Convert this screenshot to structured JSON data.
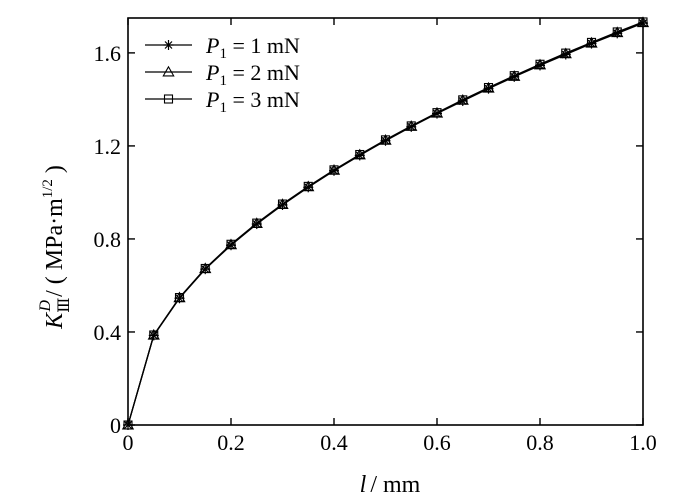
{
  "chart_data": {
    "type": "line",
    "title": "",
    "xlabel": {
      "var": "l",
      "unit": "/ mm"
    },
    "ylabel": {
      "var": "K",
      "sup": "D",
      "sub": "Ⅲ",
      "unit_prefix": "/ ( MPa·m",
      "unit_exp": "1/2",
      "unit_suffix": " )"
    },
    "xlim": [
      0,
      1.0
    ],
    "ylim": [
      0,
      1.75
    ],
    "xticks": [
      0,
      0.2,
      0.4,
      0.6,
      0.8,
      1.0
    ],
    "xtick_labels": [
      "0",
      "0.2",
      "0.4",
      "0.6",
      "0.8",
      "1.0"
    ],
    "yticks": [
      0,
      0.4,
      0.8,
      1.2,
      1.6
    ],
    "ytick_labels": [
      "0",
      "0.4",
      "0.8",
      "1.2",
      "1.6"
    ],
    "grid": false,
    "legend_position": "top-left",
    "x": [
      0,
      0.05,
      0.1,
      0.15,
      0.2,
      0.25,
      0.3,
      0.35,
      0.4,
      0.45,
      0.5,
      0.55,
      0.6,
      0.65,
      0.7,
      0.75,
      0.8,
      0.85,
      0.9,
      0.95,
      1.0
    ],
    "series": [
      {
        "name": {
          "var": "P",
          "sub": "1",
          "rest": " = 1 mN"
        },
        "marker": "star",
        "values": [
          0,
          0.385,
          0.545,
          0.67,
          0.773,
          0.864,
          0.946,
          1.022,
          1.093,
          1.159,
          1.222,
          1.282,
          1.339,
          1.393,
          1.446,
          1.497,
          1.546,
          1.593,
          1.64,
          1.684,
          1.728
        ]
      },
      {
        "name": {
          "var": "P",
          "sub": "1",
          "rest": " = 2 mN"
        },
        "marker": "triangle",
        "values": [
          0,
          0.386,
          0.547,
          0.672,
          0.775,
          0.866,
          0.948,
          1.024,
          1.095,
          1.161,
          1.224,
          1.284,
          1.341,
          1.396,
          1.448,
          1.499,
          1.548,
          1.596,
          1.642,
          1.687,
          1.73
        ]
      },
      {
        "name": {
          "var": "P",
          "sub": "1",
          "rest": " = 3 mN"
        },
        "marker": "square",
        "values": [
          0,
          0.387,
          0.548,
          0.673,
          0.777,
          0.868,
          0.95,
          1.026,
          1.097,
          1.163,
          1.226,
          1.286,
          1.343,
          1.398,
          1.451,
          1.502,
          1.551,
          1.599,
          1.645,
          1.69,
          1.733
        ]
      }
    ],
    "colors": {
      "line": "#000000",
      "marker_fill": "#ffffff",
      "frame": "#000000"
    }
  }
}
